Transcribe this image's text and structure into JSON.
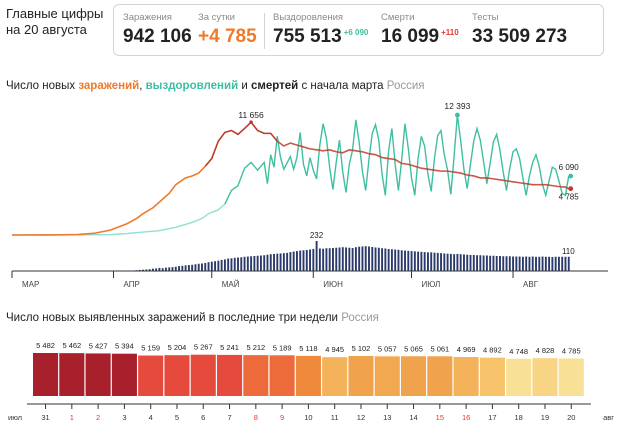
{
  "headline": "Главные цифры на 20 августа",
  "stats": {
    "infections": {
      "label": "Заражения",
      "value": "942 106"
    },
    "per_day": {
      "label": "За сутки",
      "value": "+4 785"
    },
    "recoveries": {
      "label": "Выздоровления",
      "value": "755 513",
      "delta": "+6 090"
    },
    "deaths": {
      "label": "Смерти",
      "value": "16 099",
      "delta": "+110"
    },
    "tests": {
      "label": "Тесты",
      "value": "33 509 273"
    }
  },
  "colors": {
    "infections": "#f0792a",
    "infections_peak": "#c0392b",
    "recoveries": "#3fbfa2",
    "recoveries_early": "#8fe0d2",
    "deaths": "#2a3a6a",
    "accent_red": "#e53935"
  },
  "chart1": {
    "title_prefix": "Число новых ",
    "title_inf": "заражений",
    "title_sep1": ", ",
    "title_rec": "выздоровлений",
    "title_sep2": " и ",
    "title_die": "смертей",
    "title_suffix": " с начала марта",
    "region": "Россия"
  },
  "chart2": {
    "title": "Число новых выявленных заражений в последние три недели",
    "region": "Россия"
  },
  "chart_data": [
    {
      "type": "line",
      "x_axis_labels": [
        "МАР",
        "АПР",
        "МАЙ",
        "ИЮН",
        "ИЮЛ",
        "АВГ"
      ],
      "annotations": {
        "infections_peak": "11 656",
        "recoveries_peak": "12 393",
        "recoveries_last": "6 090",
        "infections_last": "4 785",
        "deaths_peak": "232",
        "deaths_last": "110"
      },
      "series": [
        {
          "name": "заражений",
          "x_unit": "days since 1 Mar",
          "points": [
            [
              0,
              0
            ],
            [
              10,
              3
            ],
            [
              15,
              15
            ],
            [
              20,
              50
            ],
            [
              25,
              170
            ],
            [
              30,
              500
            ],
            [
              35,
              1150
            ],
            [
              38,
              1700
            ],
            [
              40,
              2200
            ],
            [
              43,
              2800
            ],
            [
              45,
              3400
            ],
            [
              48,
              4300
            ],
            [
              50,
              5200
            ],
            [
              53,
              5900
            ],
            [
              55,
              6100
            ],
            [
              57,
              6400
            ],
            [
              59,
              7100
            ],
            [
              61,
              7900
            ],
            [
              63,
              9700
            ],
            [
              65,
              10600
            ],
            [
              67,
              10800
            ],
            [
              69,
              10400
            ],
            [
              71,
              11000
            ],
            [
              73,
              11656
            ],
            [
              75,
              10800
            ],
            [
              77,
              10500
            ],
            [
              79,
              10500
            ],
            [
              81,
              9700
            ],
            [
              83,
              9200
            ],
            [
              85,
              9500
            ],
            [
              87,
              9300
            ],
            [
              89,
              9100
            ],
            [
              91,
              8900
            ],
            [
              93,
              8800
            ],
            [
              95,
              8700
            ],
            [
              97,
              8800
            ],
            [
              99,
              8600
            ],
            [
              101,
              8500
            ],
            [
              103,
              8800
            ],
            [
              105,
              8700
            ],
            [
              107,
              8600
            ],
            [
              109,
              8400
            ],
            [
              111,
              8300
            ],
            [
              113,
              8000
            ],
            [
              115,
              7900
            ],
            [
              117,
              7800
            ],
            [
              119,
              7400
            ],
            [
              121,
              7300
            ],
            [
              123,
              7100
            ],
            [
              125,
              6900
            ],
            [
              127,
              6800
            ],
            [
              129,
              6700
            ],
            [
              131,
              6600
            ],
            [
              133,
              6600
            ],
            [
              135,
              6500
            ],
            [
              137,
              6400
            ],
            [
              139,
              6200
            ],
            [
              141,
              6100
            ],
            [
              143,
              5900
            ],
            [
              145,
              5900
            ],
            [
              147,
              5800
            ],
            [
              149,
              5700
            ],
            [
              151,
              5600
            ],
            [
              153,
              5500
            ],
            [
              155,
              5400
            ],
            [
              157,
              5300
            ],
            [
              159,
              5200
            ],
            [
              161,
              5200
            ],
            [
              163,
              5200
            ],
            [
              165,
              5100
            ],
            [
              167,
              5000
            ],
            [
              169,
              4950
            ],
            [
              170,
              4785
            ]
          ]
        },
        {
          "name": "выздоровлений",
          "x_unit": "days since 1 Mar",
          "points": [
            [
              0,
              0
            ],
            [
              30,
              40
            ],
            [
              35,
              150
            ],
            [
              40,
              300
            ],
            [
              45,
              450
            ],
            [
              50,
              800
            ],
            [
              55,
              1300
            ],
            [
              58,
              1700
            ],
            [
              60,
              2200
            ],
            [
              63,
              2600
            ],
            [
              65,
              3200
            ],
            [
              67,
              4600
            ],
            [
              69,
              5100
            ],
            [
              71,
              6900
            ],
            [
              73,
              7500
            ],
            [
              75,
              6700
            ],
            [
              77,
              7500
            ],
            [
              78,
              5300
            ],
            [
              79,
              8300
            ],
            [
              80,
              7000
            ],
            [
              81,
              10200
            ],
            [
              82,
              8000
            ],
            [
              83,
              6800
            ],
            [
              85,
              8100
            ],
            [
              86,
              6800
            ],
            [
              87,
              8000
            ],
            [
              88,
              10600
            ],
            [
              89,
              7300
            ],
            [
              90,
              6100
            ],
            [
              91,
              8000
            ],
            [
              92,
              6700
            ],
            [
              93,
              5800
            ],
            [
              94,
              9300
            ],
            [
              95,
              11500
            ],
            [
              96,
              10000
            ],
            [
              97,
              7000
            ],
            [
              98,
              4700
            ],
            [
              99,
              7500
            ],
            [
              100,
              9800
            ],
            [
              101,
              6500
            ],
            [
              102,
              4400
            ],
            [
              103,
              7300
            ],
            [
              104,
              8800
            ],
            [
              105,
              11900
            ],
            [
              106,
              9600
            ],
            [
              107,
              6600
            ],
            [
              108,
              4600
            ],
            [
              109,
              7800
            ],
            [
              110,
              10500
            ],
            [
              111,
              11400
            ],
            [
              112,
              9800
            ],
            [
              113,
              6300
            ],
            [
              114,
              4100
            ],
            [
              115,
              8700
            ],
            [
              116,
              11000
            ],
            [
              117,
              7300
            ],
            [
              118,
              4600
            ],
            [
              119,
              7800
            ],
            [
              120,
              11500
            ],
            [
              121,
              9000
            ],
            [
              122,
              5900
            ],
            [
              123,
              4100
            ],
            [
              124,
              7900
            ],
            [
              125,
              10200
            ],
            [
              126,
              9200
            ],
            [
              127,
              6300
            ],
            [
              128,
              4500
            ],
            [
              129,
              7900
            ],
            [
              130,
              10300
            ],
            [
              131,
              10800
            ],
            [
              132,
              8300
            ],
            [
              133,
              6700
            ],
            [
              134,
              4200
            ],
            [
              135,
              8100
            ],
            [
              136,
              12393
            ],
            [
              137,
              9800
            ],
            [
              138,
              6800
            ],
            [
              139,
              4800
            ],
            [
              140,
              7300
            ],
            [
              141,
              9700
            ],
            [
              142,
              11000
            ],
            [
              143,
              9800
            ],
            [
              144,
              7600
            ],
            [
              145,
              5300
            ],
            [
              146,
              7400
            ],
            [
              147,
              9600
            ],
            [
              148,
              10400
            ],
            [
              149,
              8800
            ],
            [
              150,
              6500
            ],
            [
              151,
              4600
            ],
            [
              152,
              6900
            ],
            [
              153,
              8600
            ],
            [
              154,
              8900
            ],
            [
              155,
              7900
            ],
            [
              156,
              5900
            ],
            [
              157,
              4100
            ],
            [
              158,
              6100
            ],
            [
              159,
              7500
            ],
            [
              160,
              8300
            ],
            [
              161,
              7100
            ],
            [
              162,
              5200
            ],
            [
              163,
              4100
            ],
            [
              164,
              5600
            ],
            [
              165,
              7000
            ],
            [
              166,
              6800
            ],
            [
              167,
              5600
            ],
            [
              168,
              4300
            ],
            [
              169,
              4100
            ],
            [
              170,
              6090
            ]
          ]
        },
        {
          "name": "смертей",
          "type": "bar",
          "x_unit": "days since 1 Mar",
          "values": [
            0,
            0,
            0,
            0,
            0,
            0,
            0,
            0,
            0,
            0,
            0,
            0,
            0,
            0,
            0,
            0,
            0,
            0,
            0,
            0,
            0,
            0,
            0,
            0,
            0,
            0,
            0,
            0,
            0,
            0,
            1,
            1,
            1,
            2,
            2,
            3,
            3,
            4,
            6,
            8,
            10,
            12,
            14,
            18,
            20,
            24,
            22,
            26,
            28,
            30,
            33,
            38,
            40,
            44,
            46,
            48,
            52,
            56,
            58,
            62,
            68,
            72,
            76,
            80,
            86,
            90,
            96,
            98,
            102,
            104,
            106,
            110,
            112,
            114,
            116,
            118,
            120,
            122,
            126,
            130,
            132,
            134,
            136,
            138,
            140,
            146,
            150,
            154,
            158,
            160,
            162,
            166,
            170,
            232,
            174,
            172,
            176,
            176,
            178,
            180,
            182,
            184,
            182,
            180,
            178,
            184,
            188,
            190,
            192,
            190,
            186,
            182,
            180,
            176,
            174,
            170,
            168,
            166,
            164,
            160,
            158,
            156,
            154,
            152,
            150,
            148,
            146,
            144,
            144,
            142,
            140,
            138,
            136,
            134,
            132,
            130,
            132,
            130,
            128,
            126,
            124,
            124,
            122,
            122,
            120,
            120,
            118,
            118,
            116,
            116,
            114,
            114,
            114,
            112,
            112,
            112,
            110,
            112,
            110,
            112,
            110,
            110,
            112,
            110,
            110,
            108,
            110,
            110,
            110,
            110,
            110
          ]
        }
      ]
    },
    {
      "type": "bar",
      "series": [
        {
          "name": "заражения",
          "values": [
            5482,
            5462,
            5427,
            5394,
            5159,
            5204,
            5267,
            5241,
            5212,
            5189,
            5118,
            4945,
            5102,
            5057,
            5065,
            5061,
            4969,
            4892,
            4748,
            4828,
            4785
          ]
        }
      ],
      "value_labels": [
        "5 482",
        "5 462",
        "5 427",
        "5 394",
        "5 159",
        "5 204",
        "5 267",
        "5 241",
        "5 212",
        "5 189",
        "5 118",
        "4 945",
        "5 102",
        "5 057",
        "5 065",
        "5 061",
        "4 969",
        "4 892",
        "4 748",
        "4 828",
        "4 785"
      ],
      "bar_colors": [
        "#a8202c",
        "#a8202c",
        "#a8202c",
        "#a8202c",
        "#e64a3c",
        "#e64a3c",
        "#e64a3c",
        "#e64a3c",
        "#ed6a3a",
        "#ed6a3a",
        "#ef8a3c",
        "#f4b25a",
        "#f0a24c",
        "#f2a850",
        "#f0a24c",
        "#f0a24c",
        "#f4b25a",
        "#f6c26a",
        "#f8e096",
        "#f8d485",
        "#f8e096"
      ],
      "day_labels": [
        "31",
        "1",
        "2",
        "3",
        "4",
        "5",
        "6",
        "7",
        "8",
        "9",
        "10",
        "11",
        "12",
        "13",
        "14",
        "15",
        "16",
        "17",
        "18",
        "19",
        "20"
      ],
      "day_label_red": [
        false,
        true,
        true,
        false,
        false,
        false,
        false,
        false,
        true,
        true,
        false,
        false,
        false,
        false,
        false,
        true,
        true,
        false,
        false,
        false,
        false
      ],
      "month_left": "июл",
      "month_right": "авг"
    }
  ]
}
